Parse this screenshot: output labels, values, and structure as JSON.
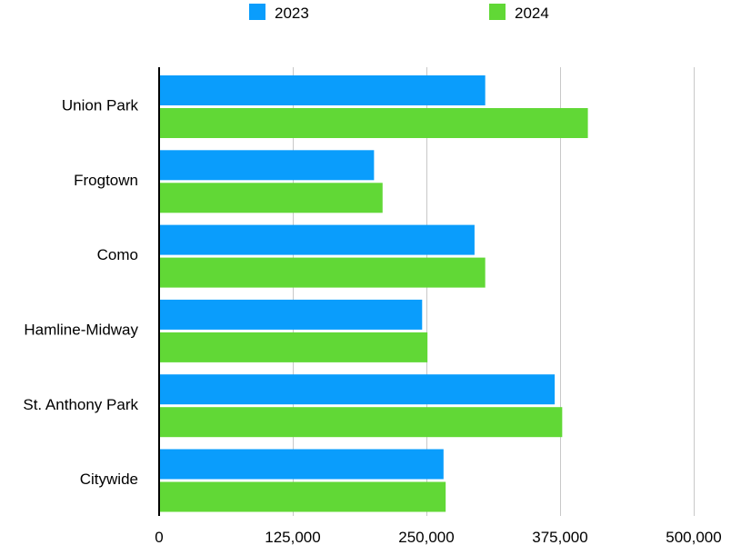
{
  "chart_data": {
    "type": "bar",
    "orientation": "horizontal",
    "categories": [
      "Union Park",
      "Frogtown",
      "Como",
      "Hamline-Midway",
      "St. Anthony Park",
      "Citywide"
    ],
    "series": [
      {
        "name": "2023",
        "color": "#0a9dfc",
        "values": [
          305000,
          201000,
          295000,
          246000,
          370000,
          266000
        ]
      },
      {
        "name": "2024",
        "color": "#61d836",
        "values": [
          401000,
          209000,
          305000,
          251000,
          377000,
          268000
        ]
      }
    ],
    "xlim": [
      0,
      500000
    ],
    "x_ticks": [
      0,
      125000,
      250000,
      375000,
      500000
    ],
    "x_tick_labels": [
      "0",
      "125,000",
      "250,000",
      "375,000",
      "500,000"
    ],
    "grid": "vertical",
    "legend_position": "top"
  }
}
